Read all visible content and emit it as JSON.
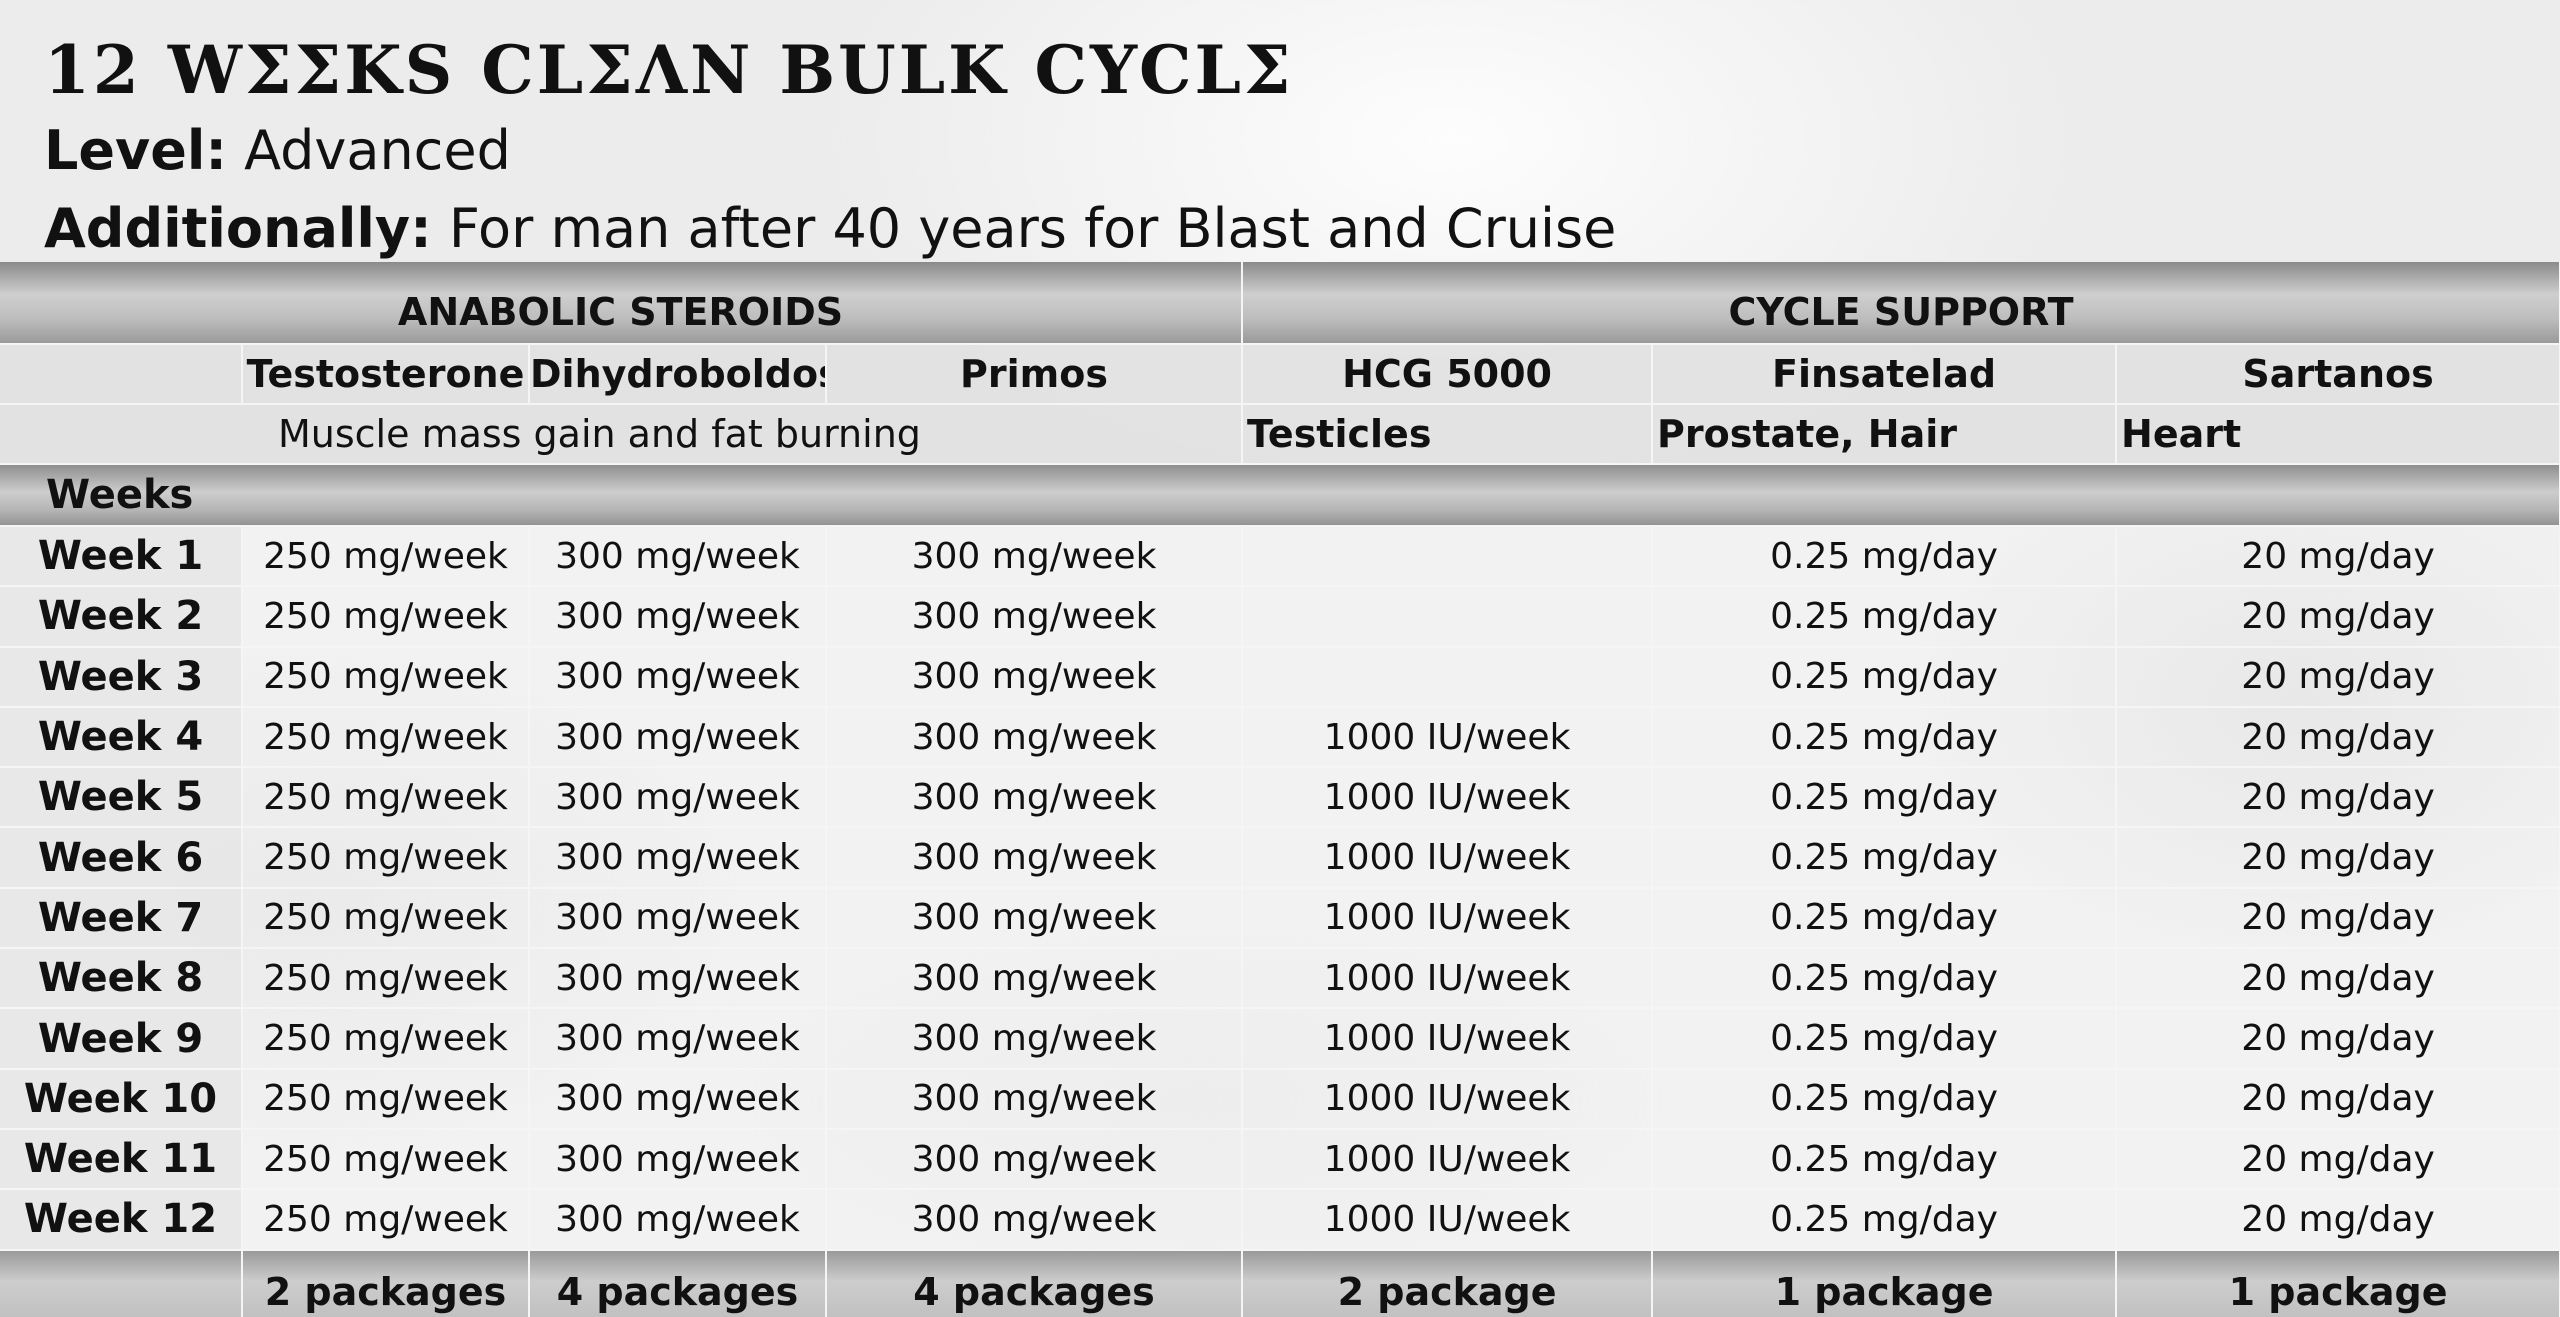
{
  "title": "12 WΣΣKS CLΣΛN BULK CYCLΣ",
  "level": {
    "label": "Level:",
    "value": "Advanced"
  },
  "additionally": {
    "label": "Additionally:",
    "value": "For man after 40 years for Blast and Cruise"
  },
  "groups": {
    "anabolic": "ANABOLIC STEROIDS",
    "support": "CYCLE SUPPORT"
  },
  "products": [
    "Testosterone",
    "Dihydroboldos",
    "Primos",
    "HCG 5000",
    "Finsatelad",
    "Sartanos"
  ],
  "purposes": {
    "anabolic": "Muscle mass gain and fat burning",
    "hcg": "Testicles",
    "finsatelad": "Prostate, Hair",
    "sartanos": "Heart"
  },
  "weeks_header": "Weeks",
  "rows": [
    {
      "week": "Week  1",
      "c": [
        "250 mg/week",
        "300 mg/week",
        "300 mg/week",
        "",
        "0.25 mg/day",
        "20 mg/day"
      ]
    },
    {
      "week": "Week  2",
      "c": [
        "250 mg/week",
        "300 mg/week",
        "300 mg/week",
        "",
        "0.25 mg/day",
        "20 mg/day"
      ]
    },
    {
      "week": "Week  3",
      "c": [
        "250 mg/week",
        "300 mg/week",
        "300 mg/week",
        "",
        "0.25 mg/day",
        "20 mg/day"
      ]
    },
    {
      "week": "Week  4",
      "c": [
        "250 mg/week",
        "300 mg/week",
        "300 mg/week",
        "1000 IU/week",
        "0.25 mg/day",
        "20 mg/day"
      ]
    },
    {
      "week": "Week  5",
      "c": [
        "250 mg/week",
        "300 mg/week",
        "300 mg/week",
        "1000 IU/week",
        "0.25 mg/day",
        "20 mg/day"
      ]
    },
    {
      "week": "Week  6",
      "c": [
        "250 mg/week",
        "300 mg/week",
        "300 mg/week",
        "1000 IU/week",
        "0.25 mg/day",
        "20 mg/day"
      ]
    },
    {
      "week": "Week  7",
      "c": [
        "250 mg/week",
        "300 mg/week",
        "300 mg/week",
        "1000 IU/week",
        "0.25 mg/day",
        "20 mg/day"
      ]
    },
    {
      "week": "Week  8",
      "c": [
        "250 mg/week",
        "300 mg/week",
        "300 mg/week",
        "1000 IU/week",
        "0.25 mg/day",
        "20 mg/day"
      ]
    },
    {
      "week": "Week  9",
      "c": [
        "250 mg/week",
        "300 mg/week",
        "300 mg/week",
        "1000 IU/week",
        "0.25 mg/day",
        "20 mg/day"
      ]
    },
    {
      "week": "Week  10",
      "c": [
        "250 mg/week",
        "300 mg/week",
        "300 mg/week",
        "1000 IU/week",
        "0.25 mg/day",
        "20 mg/day"
      ]
    },
    {
      "week": "Week  11",
      "c": [
        "250 mg/week",
        "300 mg/week",
        "300 mg/week",
        "1000 IU/week",
        "0.25 mg/day",
        "20 mg/day"
      ]
    },
    {
      "week": "Week  12",
      "c": [
        "250 mg/week",
        "300 mg/week",
        "300 mg/week",
        "1000 IU/week",
        "0.25 mg/day",
        "20 mg/day"
      ]
    }
  ],
  "totals": [
    "2 packages",
    "4 packages",
    "4 packages",
    "2 package",
    "1 package",
    "1 package"
  ]
}
